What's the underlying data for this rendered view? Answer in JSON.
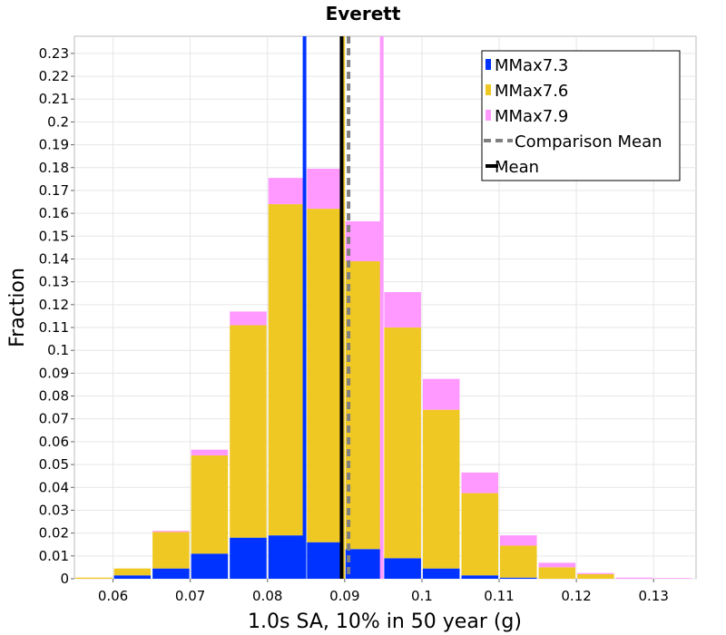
{
  "chart_data": {
    "type": "bar",
    "title": "Everett",
    "xlabel": "1.0s SA, 10% in 50 year (g)",
    "ylabel": "Fraction",
    "xlim": [
      0.055,
      0.1355
    ],
    "ylim": [
      0,
      0.2375
    ],
    "x_ticks": [
      "0.06",
      "0.07",
      "0.08",
      "0.09",
      "0.1",
      "0.11",
      "0.12",
      "0.13"
    ],
    "y_ticks": [
      "0",
      "0.01",
      "0.02",
      "0.03",
      "0.04",
      "0.05",
      "0.06",
      "0.07",
      "0.08",
      "0.09",
      "0.1",
      "0.11",
      "0.12",
      "0.13",
      "0.14",
      "0.15",
      "0.16",
      "0.17",
      "0.18",
      "0.19",
      "0.2",
      "0.21",
      "0.22",
      "0.23"
    ],
    "stacked": true,
    "bin_width": 0.005,
    "bin_centers": [
      0.0575,
      0.0625,
      0.0675,
      0.0725,
      0.0775,
      0.0825,
      0.0875,
      0.0925,
      0.0975,
      0.1025,
      0.1075,
      0.1125,
      0.1175,
      0.1225,
      0.1275,
      0.1325
    ],
    "series": [
      {
        "name": "MMax7.3",
        "color": "#0033ff",
        "values": [
          0.0,
          0.0015,
          0.0045,
          0.011,
          0.018,
          0.019,
          0.016,
          0.013,
          0.009,
          0.0045,
          0.0015,
          0.0005,
          0.0,
          0.0,
          0.0,
          0.0
        ]
      },
      {
        "name": "MMax7.6",
        "color": "#f0c823",
        "values": [
          0.0005,
          0.003,
          0.016,
          0.043,
          0.093,
          0.145,
          0.146,
          0.126,
          0.101,
          0.0695,
          0.036,
          0.014,
          0.005,
          0.002,
          0.0,
          0.0
        ]
      },
      {
        "name": "MMax7.9",
        "color": "#ff99ff",
        "values": [
          0.0,
          0.0,
          0.0005,
          0.0025,
          0.006,
          0.0115,
          0.0175,
          0.0175,
          0.0155,
          0.0135,
          0.009,
          0.0045,
          0.002,
          0.0005,
          0.0005,
          0.0003
        ]
      }
    ],
    "vertical_lines": [
      {
        "name": "MMax7.3",
        "x": 0.0848,
        "color": "#0033ff",
        "style": "solid"
      },
      {
        "name": "MMax7.6",
        "x": 0.0898,
        "color": "#f0c823",
        "style": "solid"
      },
      {
        "name": "MMax7.9",
        "x": 0.0948,
        "color": "#ff99ff",
        "style": "solid"
      },
      {
        "name": "Comparison Mean",
        "x": 0.0905,
        "color": "#808080",
        "style": "dashed"
      },
      {
        "name": "Mean",
        "x": 0.0896,
        "color": "#000000",
        "style": "solid"
      }
    ],
    "legend": {
      "position": "top-right",
      "entries": [
        {
          "label": "MMax7.3",
          "marker": "box",
          "color": "#0033ff"
        },
        {
          "label": "MMax7.6",
          "marker": "box",
          "color": "#f0c823"
        },
        {
          "label": "MMax7.9",
          "marker": "box",
          "color": "#ff99ff"
        },
        {
          "label": "Comparison Mean",
          "marker": "dashed-line",
          "color": "#808080"
        },
        {
          "label": "Mean",
          "marker": "solid-line",
          "color": "#000000"
        }
      ]
    },
    "grid": true
  }
}
